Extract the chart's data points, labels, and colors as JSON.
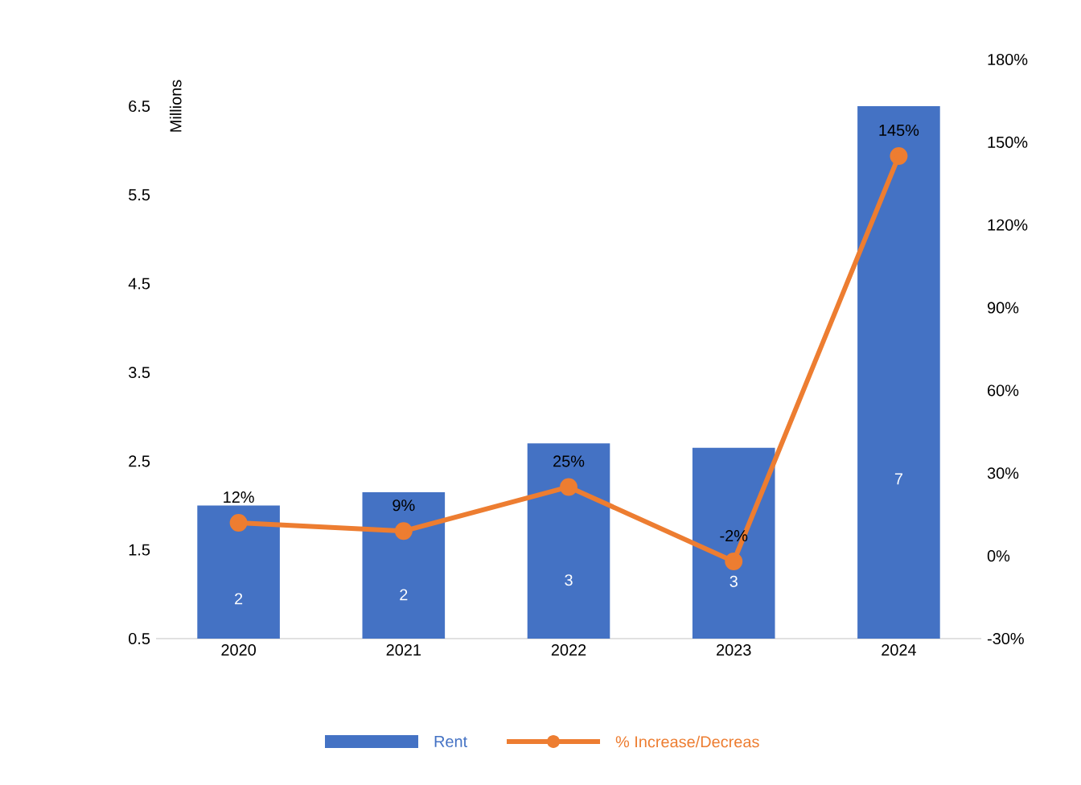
{
  "chart_data": {
    "type": "bar",
    "ylabel": "Millions",
    "categories": [
      "2020",
      "2021",
      "2022",
      "2023",
      "2024"
    ],
    "series": [
      {
        "name": "Rent",
        "color": "#4472c4",
        "values": [
          2.0,
          2.15,
          2.7,
          2.65,
          6.5
        ],
        "value_labels": [
          "2",
          "2",
          "3",
          "3",
          "7"
        ]
      },
      {
        "name": "% Increase/Decreas",
        "type": "line",
        "axis": "y2",
        "color": "#ed7d31",
        "marker": "circle",
        "values": [
          12,
          9,
          25,
          -2,
          145
        ],
        "value_labels": [
          "12%",
          "9%",
          "25%",
          "-2%",
          "145%"
        ]
      }
    ],
    "ylim": [
      0.5,
      6.5
    ],
    "yticks": [
      0.5,
      1.5,
      2.5,
      3.5,
      4.5,
      5.5,
      6.5
    ],
    "y2lim": [
      -30,
      180
    ],
    "y2ticks": [
      {
        "value": -30,
        "label": "-30%"
      },
      {
        "value": 0,
        "label": "0%"
      },
      {
        "value": 30,
        "label": "30%"
      },
      {
        "value": 60,
        "label": "60%"
      },
      {
        "value": 90,
        "label": "90%"
      },
      {
        "value": 120,
        "label": "120%"
      },
      {
        "value": 150,
        "label": "150%"
      },
      {
        "value": 180,
        "label": "180%"
      }
    ],
    "legend": "bottom",
    "grid": false
  }
}
